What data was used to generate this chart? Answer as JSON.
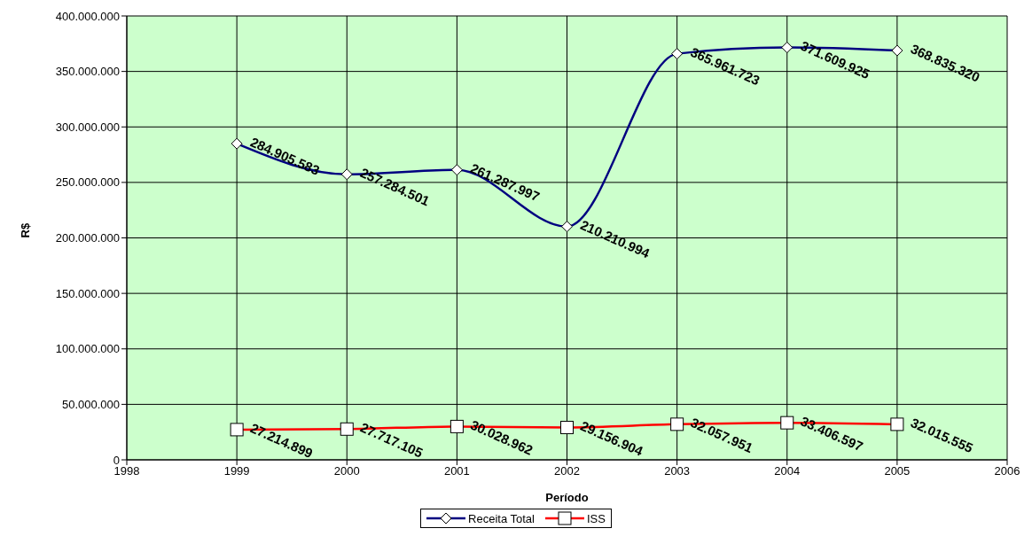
{
  "chart_data": {
    "type": "line",
    "xlabel": "Período",
    "ylabel": "R$",
    "x": [
      1999,
      2000,
      2001,
      2002,
      2003,
      2004,
      2005
    ],
    "series": [
      {
        "name": "Receita Total",
        "color": "#000080",
        "marker": "diamond",
        "values": [
          284905583,
          257284501,
          261287997,
          210210994,
          365961723,
          371609925,
          368835320
        ],
        "value_labels": [
          "284.905.583",
          "257.284.501",
          "261.287.997",
          "210.210.994",
          "365.961.723",
          "371.609.925",
          "368.835.320"
        ]
      },
      {
        "name": "ISS",
        "color": "#ff0000",
        "marker": "square",
        "values": [
          27214899,
          27717105,
          30028962,
          29156904,
          32057951,
          33406597,
          32015555
        ],
        "value_labels": [
          "27.214.899",
          "27.717.105",
          "30.028.962",
          "29.156.904",
          "32.057.951",
          "33.406.597",
          "32.015.555"
        ]
      }
    ],
    "xlim": [
      1998,
      2006
    ],
    "xticks": [
      1998,
      1999,
      2000,
      2001,
      2002,
      2003,
      2004,
      2005,
      2006
    ],
    "ylim": [
      0,
      400000000
    ],
    "yticks": [
      0,
      {
        "value": 50000000,
        "label": "50.000.000"
      },
      {
        "value": 100000000,
        "label": "100.000.000"
      },
      {
        "value": 150000000,
        "label": "150.000.000"
      },
      {
        "value": 200000000,
        "label": "200.000.000"
      },
      {
        "value": 250000000,
        "label": "250.000.000"
      },
      {
        "value": 300000000,
        "label": "300.000.000"
      },
      {
        "value": 350000000,
        "label": "350.000.000"
      },
      {
        "value": 400000000,
        "label": "400.000.000"
      }
    ],
    "grid": true,
    "legend": "bottom",
    "line_style": "solid"
  }
}
